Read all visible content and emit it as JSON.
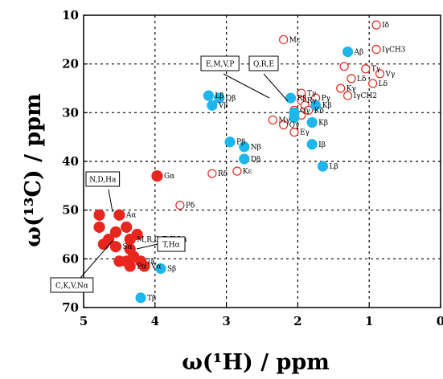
{
  "chart_data": {
    "type": "scatter",
    "title": "",
    "xlabel": "ω(¹H) / ppm",
    "ylabel": "ω(¹³C) / ppm",
    "xlim": [
      5,
      0
    ],
    "ylim": [
      70,
      10
    ],
    "x_ticks": [
      "5",
      "4",
      "3",
      "2",
      "1",
      "0"
    ],
    "y_ticks": [
      "10",
      "20",
      "30",
      "40",
      "50",
      "60",
      "70"
    ],
    "colors": {
      "red": "#e8261e",
      "blue": "#1fb6ec",
      "grid": "#000000"
    },
    "series": [
      {
        "marker": "open-red-circle",
        "points": [
          {
            "x": 0.9,
            "y": 12,
            "label": "Iδ"
          },
          {
            "x": 0.9,
            "y": 17,
            "label": "IγCH3"
          },
          {
            "x": 2.2,
            "y": 15,
            "label": "Mε"
          },
          {
            "x": 1.05,
            "y": 21,
            "label": "Tγ"
          },
          {
            "x": 1.35,
            "y": 20.5,
            "label": ""
          },
          {
            "x": 0.85,
            "y": 22,
            "label": "Vγ"
          },
          {
            "x": 1.25,
            "y": 23,
            "label": "Lδ"
          },
          {
            "x": 0.95,
            "y": 24,
            "label": "Lδ"
          },
          {
            "x": 1.4,
            "y": 25,
            "label": "Kγ"
          },
          {
            "x": 1.3,
            "y": 26.5,
            "label": "IγCH2"
          },
          {
            "x": 1.95,
            "y": 26,
            "label": "Tγ"
          },
          {
            "x": 1.75,
            "y": 27,
            "label": "Pγ"
          },
          {
            "x": 1.95,
            "y": 27.5,
            "label": "Rγ"
          },
          {
            "x": 1.9,
            "y": 28.5,
            "label": ""
          },
          {
            "x": 1.85,
            "y": 29.5,
            "label": "Kδ"
          },
          {
            "x": 2.05,
            "y": 29.5,
            "label": "Qγ"
          },
          {
            "x": 1.95,
            "y": 30.5,
            "label": ""
          },
          {
            "x": 2.35,
            "y": 31.5,
            "label": "Mγ"
          },
          {
            "x": 2.2,
            "y": 32.5,
            "label": "Qγ"
          },
          {
            "x": 2.05,
            "y": 34,
            "label": "Eγ"
          },
          {
            "x": 3.2,
            "y": 42.5,
            "label": "Rδ"
          },
          {
            "x": 2.85,
            "y": 42,
            "label": "Kε"
          },
          {
            "x": 3.65,
            "y": 49,
            "label": "Pδ"
          }
        ]
      },
      {
        "marker": "filled-red-circle",
        "points": [
          {
            "x": 3.97,
            "y": 43,
            "label": "Gα"
          },
          {
            "x": 4.5,
            "y": 51,
            "label": "Aα"
          },
          {
            "x": 4.78,
            "y": 51,
            "label": ""
          },
          {
            "x": 4.78,
            "y": 53.5,
            "label": ""
          },
          {
            "x": 4.4,
            "y": 53.5,
            "label": ""
          },
          {
            "x": 4.55,
            "y": 54.5,
            "label": ""
          },
          {
            "x": 4.25,
            "y": 55,
            "label": ""
          },
          {
            "x": 4.35,
            "y": 56,
            "label": "M,R,Q,E,K,Lα"
          },
          {
            "x": 4.65,
            "y": 56,
            "label": ""
          },
          {
            "x": 4.72,
            "y": 57,
            "label": ""
          },
          {
            "x": 4.55,
            "y": 57.5,
            "label": "Sα"
          },
          {
            "x": 4.35,
            "y": 58,
            "label": ""
          },
          {
            "x": 4.3,
            "y": 59.5,
            "label": ""
          },
          {
            "x": 4.4,
            "y": 60.5,
            "label": ""
          },
          {
            "x": 4.2,
            "y": 60.5,
            "label": "Ia"
          },
          {
            "x": 4.5,
            "y": 60.5,
            "label": ""
          },
          {
            "x": 4.35,
            "y": 61.5,
            "label": "Pα"
          },
          {
            "x": 4.15,
            "y": 61.5,
            "label": "Vα"
          }
        ]
      },
      {
        "marker": "filled-blue-circle",
        "points": [
          {
            "x": 1.3,
            "y": 17.5,
            "label": "Aβ"
          },
          {
            "x": 3.25,
            "y": 26.5,
            "label": "Lβ"
          },
          {
            "x": 3.1,
            "y": 27,
            "label": "Qβ"
          },
          {
            "x": 3.2,
            "y": 28.5,
            "label": "Vβ"
          },
          {
            "x": 2.1,
            "y": 27,
            "label": "Rβ"
          },
          {
            "x": 2.05,
            "y": 30,
            "label": ""
          },
          {
            "x": 2.05,
            "y": 31,
            "label": ""
          },
          {
            "x": 1.75,
            "y": 28.5,
            "label": "Kβ"
          },
          {
            "x": 1.8,
            "y": 32,
            "label": "Kβ"
          },
          {
            "x": 2.95,
            "y": 36,
            "label": "Pβ"
          },
          {
            "x": 2.75,
            "y": 37,
            "label": "Nβ"
          },
          {
            "x": 2.75,
            "y": 39.5,
            "label": "Dβ"
          },
          {
            "x": 1.8,
            "y": 36.5,
            "label": "Iβ"
          },
          {
            "x": 1.65,
            "y": 41,
            "label": "Lβ"
          },
          {
            "x": 3.92,
            "y": 62,
            "label": "Sβ"
          },
          {
            "x": 4.2,
            "y": 68,
            "label": "Tβ"
          }
        ]
      }
    ],
    "annotations": [
      {
        "text": "E,M,V,P",
        "box": true
      },
      {
        "text": "Q,R,E",
        "box": true
      },
      {
        "text": "N,D,Ha",
        "box": true
      },
      {
        "text": "T,Hα",
        "box": true
      },
      {
        "text": "C,K,V,Nα",
        "box": true
      }
    ]
  }
}
